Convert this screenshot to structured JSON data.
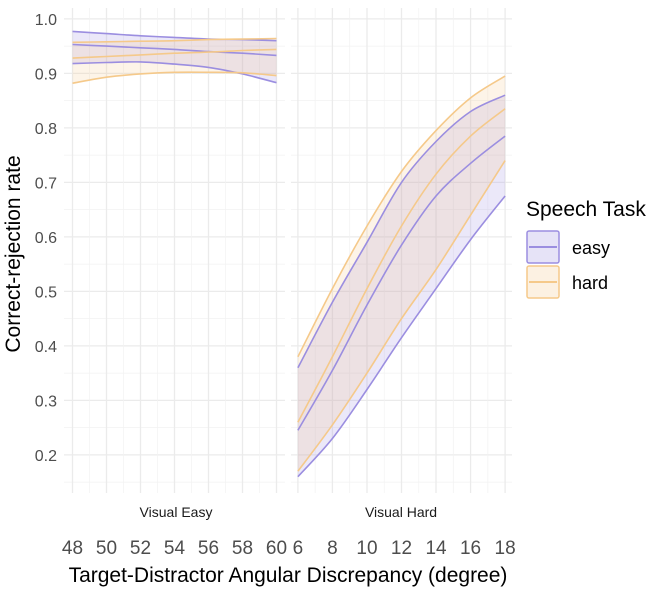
{
  "chart_data": {
    "type": "line",
    "ylabel": "Correct-rejection rate",
    "xlabel": "Target-Distractor Angular Discrepancy (degree)",
    "ylim": [
      0.13,
      1.02
    ],
    "yticks": [
      0.2,
      0.3,
      0.4,
      0.5,
      0.6,
      0.7,
      0.8,
      0.9,
      1.0
    ],
    "ytick_labels": [
      "0.2",
      "0.3",
      "0.4",
      "0.5",
      "0.6",
      "0.7",
      "0.8",
      "0.9",
      "1.0"
    ],
    "grid": true,
    "legend": {
      "title": "Speech Task",
      "position": "right",
      "entries": [
        "easy",
        "hard"
      ]
    },
    "colors": {
      "easy": "#9b8ee0",
      "hard": "#f5c98a"
    },
    "panels": [
      {
        "strip": "Visual Easy",
        "xlim": [
          47.5,
          60.5
        ],
        "xticks": [
          48,
          50,
          52,
          54,
          56,
          58,
          60
        ],
        "xtick_labels": [
          "48",
          "50",
          "52",
          "54",
          "56",
          "58",
          "60"
        ],
        "series": [
          {
            "name": "easy",
            "x": [
              48,
              50,
              52,
              54,
              56,
              58,
              60
            ],
            "fit": [
              0.953,
              0.95,
              0.947,
              0.944,
              0.94,
              0.937,
              0.933
            ],
            "lower": [
              0.918,
              0.92,
              0.921,
              0.917,
              0.911,
              0.899,
              0.883
            ],
            "upper": [
              0.977,
              0.973,
              0.969,
              0.966,
              0.963,
              0.962,
              0.96
            ]
          },
          {
            "name": "hard",
            "x": [
              48,
              50,
              52,
              54,
              56,
              58,
              60
            ],
            "fit": [
              0.928,
              0.931,
              0.934,
              0.937,
              0.939,
              0.942,
              0.944
            ],
            "lower": [
              0.882,
              0.893,
              0.899,
              0.902,
              0.902,
              0.901,
              0.896
            ],
            "upper": [
              0.957,
              0.958,
              0.959,
              0.96,
              0.962,
              0.963,
              0.964
            ]
          }
        ]
      },
      {
        "strip": "Visual Hard",
        "xlim": [
          5.6,
          18.4
        ],
        "xticks": [
          6,
          8,
          10,
          12,
          14,
          16,
          18
        ],
        "xtick_labels": [
          "6",
          "8",
          "10",
          "12",
          "14",
          "16",
          "18"
        ],
        "series": [
          {
            "name": "easy",
            "x": [
              6,
              8,
              10,
              12,
              14,
              16,
              18
            ],
            "fit": [
              0.245,
              0.355,
              0.475,
              0.585,
              0.675,
              0.735,
              0.785
            ],
            "lower": [
              0.16,
              0.23,
              0.32,
              0.415,
              0.505,
              0.595,
              0.675
            ],
            "upper": [
              0.36,
              0.48,
              0.59,
              0.7,
              0.775,
              0.83,
              0.86
            ]
          },
          {
            "name": "hard",
            "x": [
              6,
              8,
              10,
              12,
              14,
              16,
              18
            ],
            "fit": [
              0.26,
              0.38,
              0.505,
              0.62,
              0.715,
              0.785,
              0.835
            ],
            "lower": [
              0.17,
              0.255,
              0.35,
              0.45,
              0.54,
              0.64,
              0.74
            ],
            "upper": [
              0.38,
              0.505,
              0.62,
              0.72,
              0.795,
              0.855,
              0.895
            ]
          }
        ]
      }
    ]
  }
}
